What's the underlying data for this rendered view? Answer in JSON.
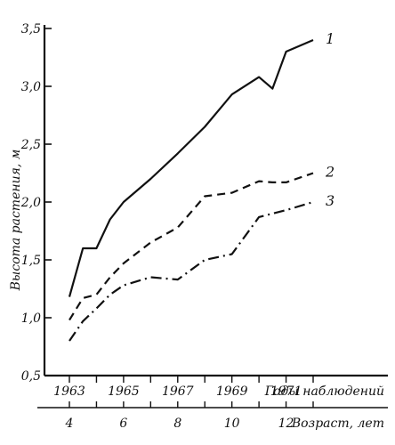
{
  "chart_data": {
    "type": "line",
    "ylabel": "Высота растения, м",
    "xlabel": "Годы наблюдений",
    "x2label": "Возраст, лет",
    "ylim": [
      0.5,
      3.5
    ],
    "xlim": [
      1963,
      1972
    ],
    "yticks": [
      "0,5",
      "1,0",
      "1,5",
      "2,0",
      "2,5",
      "3,0",
      "3,5"
    ],
    "xticks": [
      "1963",
      "1965",
      "1967",
      "1969",
      "1971"
    ],
    "x2ticks": [
      "4",
      "6",
      "8",
      "10",
      "12"
    ],
    "grid": false,
    "series": [
      {
        "name": "1",
        "style": "solid",
        "x": [
          1963,
          1963.5,
          1964,
          1964.5,
          1965,
          1966,
          1967,
          1968,
          1969,
          1970,
          1970.5,
          1971,
          1972
        ],
        "values": [
          1.18,
          1.6,
          1.6,
          1.85,
          2.0,
          2.2,
          2.42,
          2.65,
          2.93,
          3.08,
          2.98,
          3.3,
          3.4
        ]
      },
      {
        "name": "2",
        "style": "dashed",
        "x": [
          1963,
          1963.5,
          1964,
          1964.5,
          1965,
          1966,
          1967,
          1968,
          1969,
          1970,
          1970.5,
          1971,
          1972
        ],
        "values": [
          0.98,
          1.17,
          1.2,
          1.35,
          1.47,
          1.65,
          1.78,
          2.05,
          2.08,
          2.18,
          2.17,
          2.17,
          2.25
        ]
      },
      {
        "name": "3",
        "style": "dashdot",
        "x": [
          1963,
          1963.5,
          1964,
          1964.5,
          1965,
          1966,
          1967,
          1968,
          1969,
          1970,
          1970.5,
          1971,
          1972
        ],
        "values": [
          0.8,
          0.97,
          1.08,
          1.2,
          1.28,
          1.35,
          1.33,
          1.5,
          1.55,
          1.87,
          1.9,
          1.93,
          2.0
        ]
      }
    ]
  }
}
